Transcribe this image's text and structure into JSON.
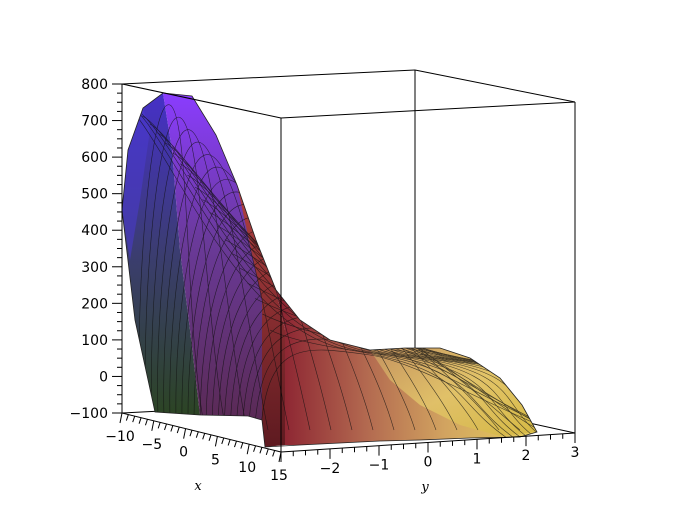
{
  "chart_data": {
    "type": "surface3d",
    "title": "",
    "xlabel": "x",
    "ylabel": "y",
    "zlabel": "",
    "xlim": [
      -10,
      15
    ],
    "ylim": [
      -3,
      3
    ],
    "zlim": [
      -100,
      800
    ],
    "x_ticks": [
      "−10",
      "−5",
      "0",
      "5",
      "10",
      "15"
    ],
    "y_ticks": [
      "−2",
      "−1",
      "0",
      "1",
      "2",
      "3"
    ],
    "z_ticks": [
      "800",
      "700",
      "600",
      "500",
      "400",
      "300",
      "200",
      "100",
      "0",
      "−100"
    ],
    "grid_lines": {
      "x": 20,
      "y": 20
    },
    "colors": {
      "high": "#7733ff",
      "mid": "#7a2850",
      "low": "#2b4a22",
      "far": "#e7cf52"
    },
    "surface_samples": [
      {
        "x": -10,
        "y": -3,
        "z": 440
      },
      {
        "x": -10,
        "y": -2.6,
        "z": 765
      },
      {
        "x": -10,
        "y": -1.6,
        "z": 690
      },
      {
        "x": -10,
        "y": 2.4,
        "z": 65
      },
      {
        "x": 15,
        "y": -3,
        "z": -100
      },
      {
        "x": 15,
        "y": 0,
        "z": 100
      },
      {
        "x": 15,
        "y": 2.4,
        "z": -100
      }
    ]
  }
}
